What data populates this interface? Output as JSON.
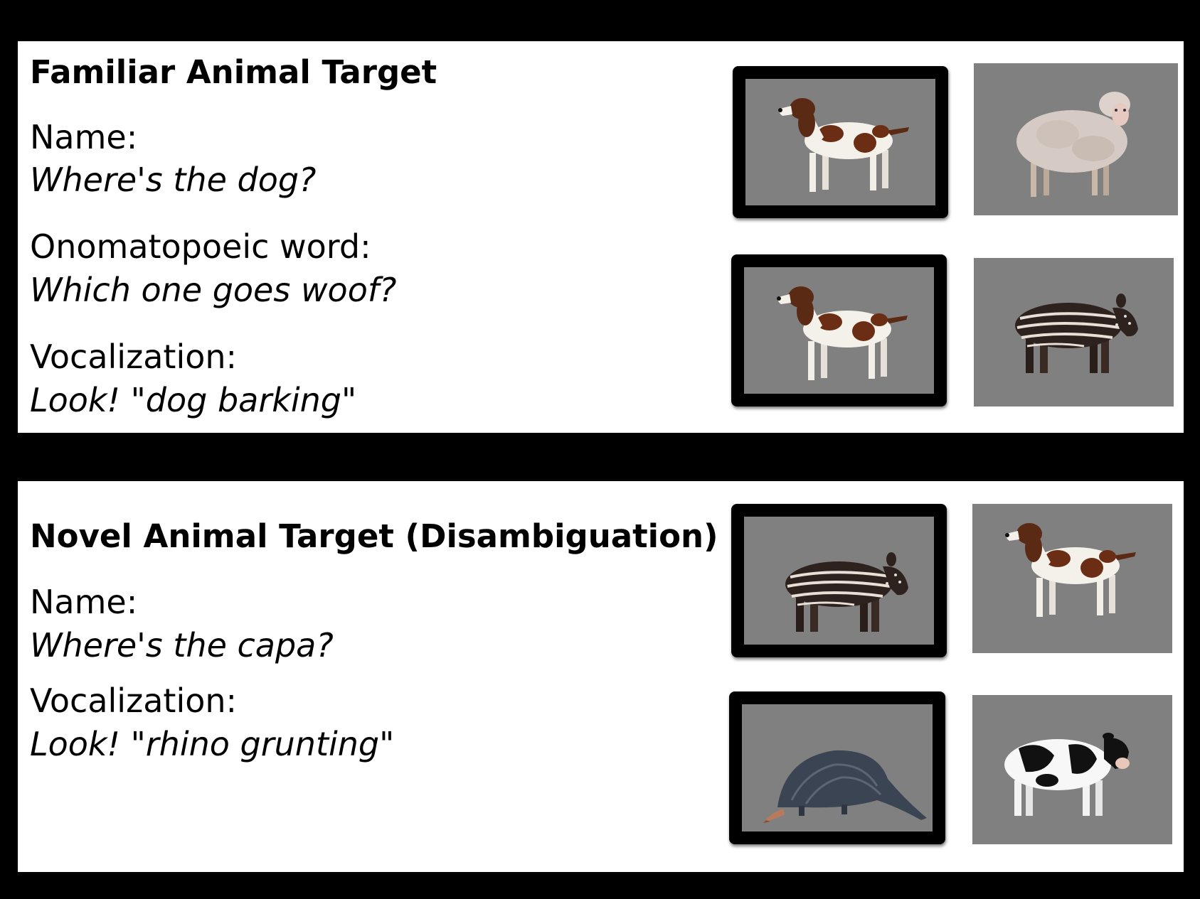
{
  "familiar": {
    "title": "Familiar Animal Target",
    "conditions": [
      {
        "label": "Name:",
        "prompt": "Where's the dog?"
      },
      {
        "label": "Onomatopoeic word:",
        "prompt": "Which one goes woof?"
      },
      {
        "label": "Vocalization:",
        "prompt": "Look! \"dog barking\""
      }
    ],
    "pairs": [
      {
        "target": "dog",
        "distractor": "sheep"
      },
      {
        "target": "dog",
        "distractor": "tapir"
      }
    ]
  },
  "novel": {
    "title": "Novel Animal Target (Disambiguation)",
    "conditions": [
      {
        "label": "Name:",
        "prompt": "Where's the capa?"
      },
      {
        "label": "Vocalization:",
        "prompt": "Look! \"rhino grunting\""
      }
    ],
    "pairs": [
      {
        "target": "tapir",
        "distractor": "dog"
      },
      {
        "target": "pangolin",
        "distractor": "cow"
      }
    ]
  },
  "colors": {
    "background": "#000000",
    "panel": "#ffffff",
    "tile": "#808080",
    "selection_frame": "#000000"
  },
  "icons": {
    "dog": "dog-icon",
    "sheep": "sheep-icon",
    "tapir": "tapir-icon",
    "pangolin": "pangolin-icon",
    "cow": "cow-icon"
  }
}
